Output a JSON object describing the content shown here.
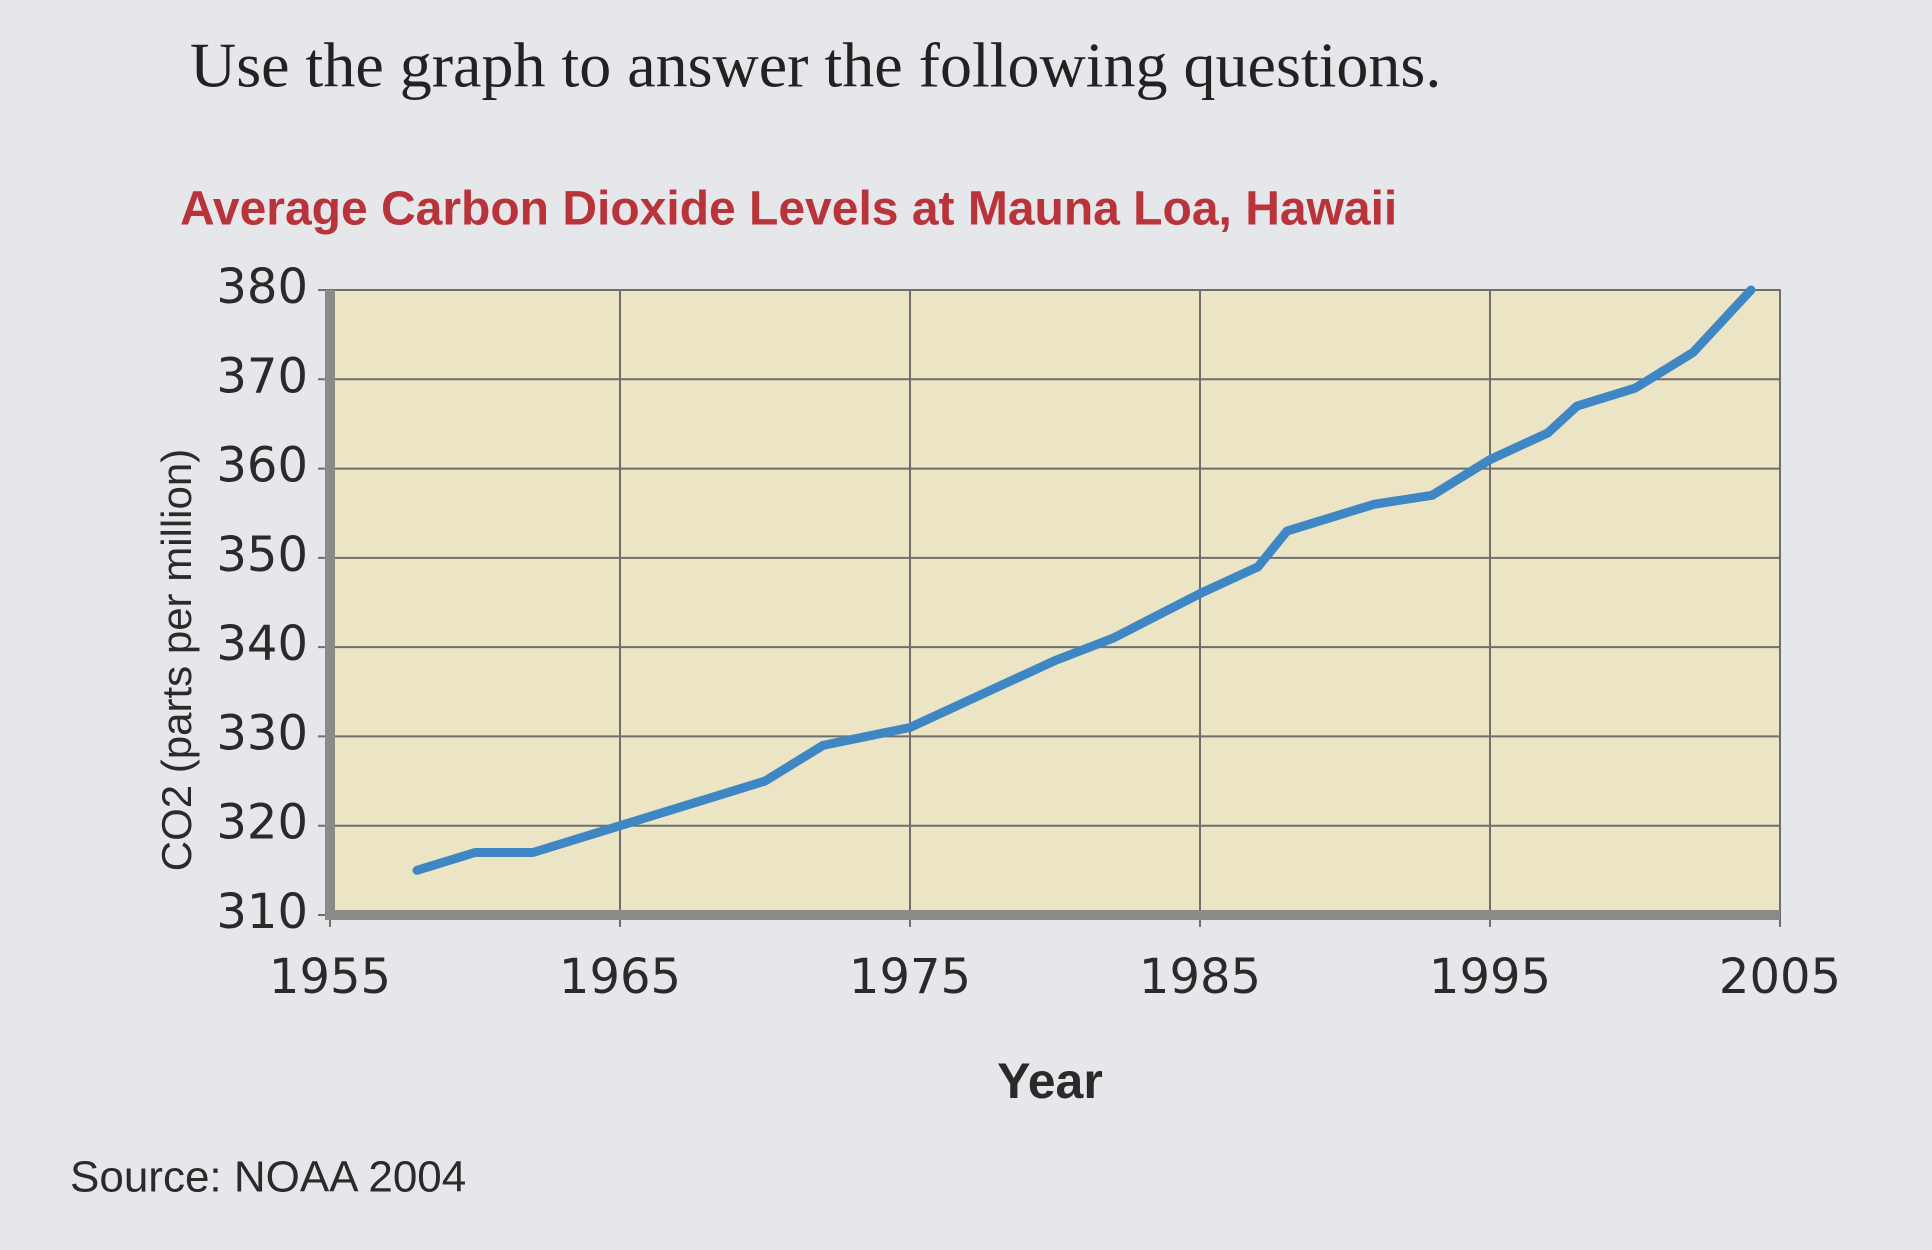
{
  "heading": "Use the graph to answer the following questions.",
  "chart_data": {
    "type": "line",
    "title": "Average Carbon Dioxide Levels at Mauna Loa, Hawaii",
    "xlabel": "Year",
    "ylabel": "CO2 (parts per million)",
    "source": "Source: NOAA 2004",
    "x": [
      1958,
      1960,
      1962,
      1965,
      1968,
      1970,
      1972,
      1975,
      1977,
      1980,
      1982,
      1985,
      1987,
      1988,
      1990,
      1991,
      1993,
      1995,
      1997,
      1998,
      2000,
      2002,
      2004
    ],
    "values": [
      315,
      317,
      317,
      320,
      323,
      325,
      329,
      331,
      334,
      338.5,
      341,
      346,
      349,
      353,
      355,
      356,
      357,
      361,
      364,
      367,
      369,
      373,
      380
    ],
    "color": "#3f86c4",
    "xlim": [
      1955,
      2005
    ],
    "xticks": [
      1955,
      1965,
      1975,
      1985,
      1995,
      2005
    ],
    "ylim": [
      310,
      380
    ],
    "yticks": [
      310,
      320,
      330,
      340,
      350,
      360,
      370,
      380
    ],
    "grid": true
  }
}
